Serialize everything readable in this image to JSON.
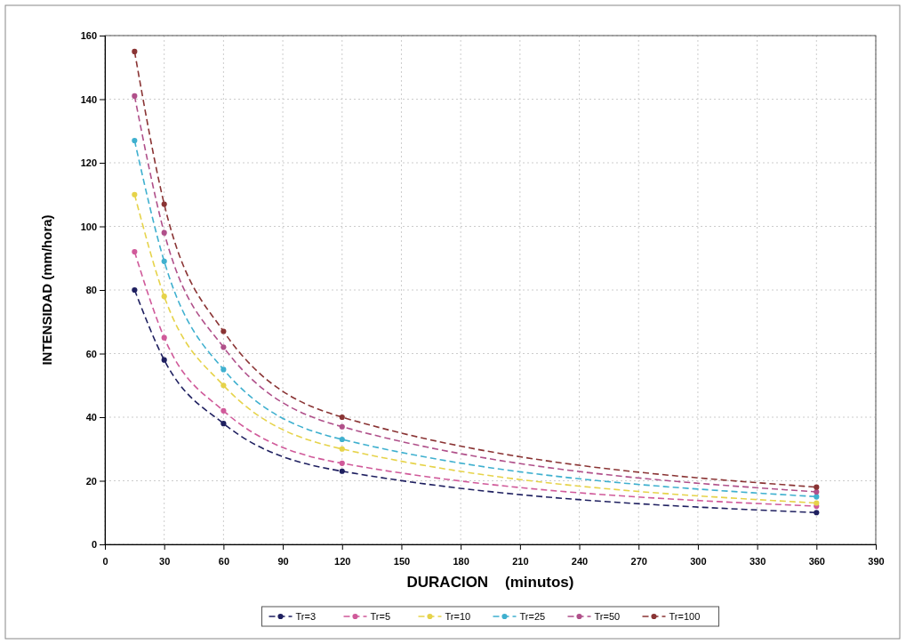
{
  "chart_data": {
    "type": "line",
    "xlabel": "DURACION    (minutos)",
    "ylabel": "INTENSIDAD (mm/hora)",
    "x": [
      15,
      30,
      60,
      120,
      360
    ],
    "series": [
      {
        "name": "Tr=3",
        "color": "#1f2060",
        "values": [
          80,
          58,
          38,
          23,
          10
        ]
      },
      {
        "name": "Tr=5",
        "color": "#d05a9a",
        "values": [
          92,
          65,
          42,
          25.5,
          12
        ]
      },
      {
        "name": "Tr=10",
        "color": "#e6d34a",
        "values": [
          110,
          78,
          50,
          30,
          13
        ]
      },
      {
        "name": "Tr=25",
        "color": "#3fb0cf",
        "values": [
          127,
          89,
          55,
          33,
          15
        ]
      },
      {
        "name": "Tr=50",
        "color": "#b0508a",
        "values": [
          141,
          98,
          62,
          37,
          16.5
        ]
      },
      {
        "name": "Tr=100",
        "color": "#8a3434",
        "values": [
          155,
          107,
          67,
          40,
          18
        ]
      }
    ],
    "xlim": [
      0,
      390
    ],
    "xticks": [
      0,
      30,
      60,
      90,
      120,
      150,
      180,
      210,
      240,
      270,
      300,
      330,
      360,
      390
    ],
    "ylim": [
      0,
      160
    ],
    "yticks": [
      0,
      20,
      40,
      60,
      80,
      100,
      120,
      140,
      160
    ],
    "grid": true,
    "legend": "bottom",
    "marker": "circle",
    "line_style": "dashed"
  }
}
